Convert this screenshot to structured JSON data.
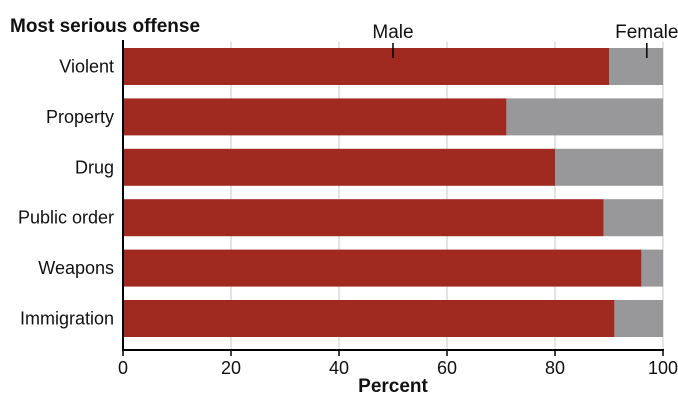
{
  "chart_data": {
    "type": "bar",
    "orientation": "horizontal",
    "stacked": true,
    "title": "Most serious offense",
    "xlabel": "Percent",
    "ylabel": "",
    "xlim": [
      0,
      100
    ],
    "xticks": [
      "0",
      "20",
      "40",
      "60",
      "80",
      "100"
    ],
    "categories": [
      "Violent",
      "Property",
      "Drug",
      "Public order",
      "Weapons",
      "Immigration"
    ],
    "series": [
      {
        "name": "Male",
        "values": [
          90,
          71,
          80,
          89,
          96,
          91
        ],
        "color": "#a02a20"
      },
      {
        "name": "Female",
        "values": [
          10,
          29,
          20,
          11,
          4,
          9
        ],
        "color": "#98989a"
      }
    ],
    "series_label_positions": [
      50,
      97
    ],
    "grid": "vertical",
    "legend": "inline-top"
  }
}
